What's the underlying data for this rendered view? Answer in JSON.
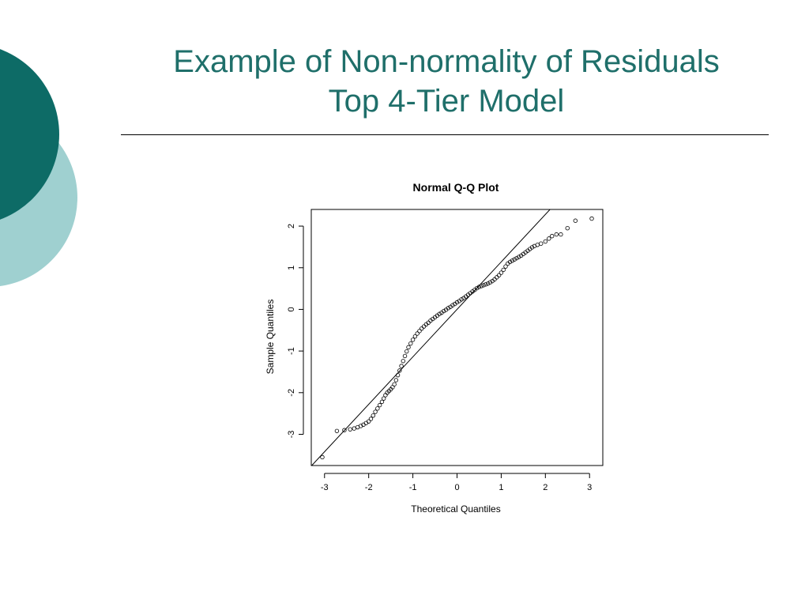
{
  "slide": {
    "title_line1": "Example of Non-normality of Residuals",
    "title_line2": "Top 4-Tier Model",
    "colors": {
      "title": "#1f6f6a",
      "circle_dark": "#0d6b66",
      "circle_light": "#9fd0d0"
    }
  },
  "chart_data": {
    "type": "scatter",
    "title": "Normal Q-Q Plot",
    "xlabel": "Theoretical Quantiles",
    "ylabel": "Sample Quantiles",
    "xlim": [
      -3.3,
      3.3
    ],
    "ylim": [
      -3.75,
      2.4
    ],
    "xticks": [
      -3,
      -2,
      -1,
      0,
      1,
      2,
      3
    ],
    "yticks": [
      -3,
      -2,
      -1,
      0,
      1,
      2
    ],
    "grid": false,
    "reference_line": {
      "intercept": 0.0,
      "slope": 1.14
    },
    "points": [
      [
        -3.05,
        -3.55
      ],
      [
        -2.72,
        -2.92
      ],
      [
        -2.55,
        -2.9
      ],
      [
        -2.42,
        -2.88
      ],
      [
        -2.33,
        -2.86
      ],
      [
        -2.25,
        -2.83
      ],
      [
        -2.18,
        -2.8
      ],
      [
        -2.12,
        -2.77
      ],
      [
        -2.06,
        -2.73
      ],
      [
        -2.0,
        -2.69
      ],
      [
        -1.95,
        -2.63
      ],
      [
        -1.9,
        -2.55
      ],
      [
        -1.85,
        -2.46
      ],
      [
        -1.8,
        -2.38
      ],
      [
        -1.75,
        -2.3
      ],
      [
        -1.7,
        -2.22
      ],
      [
        -1.66,
        -2.14
      ],
      [
        -1.62,
        -2.06
      ],
      [
        -1.58,
        -2.0
      ],
      [
        -1.54,
        -1.96
      ],
      [
        -1.5,
        -1.92
      ],
      [
        -1.46,
        -1.87
      ],
      [
        -1.42,
        -1.8
      ],
      [
        -1.38,
        -1.7
      ],
      [
        -1.34,
        -1.58
      ],
      [
        -1.3,
        -1.47
      ],
      [
        -1.26,
        -1.36
      ],
      [
        -1.22,
        -1.24
      ],
      [
        -1.18,
        -1.12
      ],
      [
        -1.14,
        -1.01
      ],
      [
        -1.1,
        -0.91
      ],
      [
        -1.05,
        -0.82
      ],
      [
        -1.0,
        -0.73
      ],
      [
        -0.95,
        -0.65
      ],
      [
        -0.9,
        -0.58
      ],
      [
        -0.85,
        -0.52
      ],
      [
        -0.8,
        -0.46
      ],
      [
        -0.75,
        -0.41
      ],
      [
        -0.7,
        -0.36
      ],
      [
        -0.65,
        -0.32
      ],
      [
        -0.6,
        -0.27
      ],
      [
        -0.55,
        -0.23
      ],
      [
        -0.5,
        -0.19
      ],
      [
        -0.45,
        -0.15
      ],
      [
        -0.4,
        -0.11
      ],
      [
        -0.35,
        -0.08
      ],
      [
        -0.3,
        -0.04
      ],
      [
        -0.25,
        -0.01
      ],
      [
        -0.2,
        0.03
      ],
      [
        -0.15,
        0.06
      ],
      [
        -0.1,
        0.1
      ],
      [
        -0.05,
        0.13
      ],
      [
        0.0,
        0.17
      ],
      [
        0.05,
        0.2
      ],
      [
        0.1,
        0.24
      ],
      [
        0.15,
        0.27
      ],
      [
        0.2,
        0.31
      ],
      [
        0.25,
        0.35
      ],
      [
        0.3,
        0.39
      ],
      [
        0.35,
        0.43
      ],
      [
        0.4,
        0.47
      ],
      [
        0.45,
        0.51
      ],
      [
        0.5,
        0.54
      ],
      [
        0.55,
        0.56
      ],
      [
        0.6,
        0.58
      ],
      [
        0.65,
        0.6
      ],
      [
        0.7,
        0.62
      ],
      [
        0.75,
        0.65
      ],
      [
        0.8,
        0.68
      ],
      [
        0.85,
        0.72
      ],
      [
        0.9,
        0.77
      ],
      [
        0.95,
        0.82
      ],
      [
        1.0,
        0.88
      ],
      [
        1.05,
        0.95
      ],
      [
        1.1,
        1.03
      ],
      [
        1.15,
        1.1
      ],
      [
        1.2,
        1.14
      ],
      [
        1.25,
        1.17
      ],
      [
        1.3,
        1.2
      ],
      [
        1.35,
        1.23
      ],
      [
        1.4,
        1.26
      ],
      [
        1.45,
        1.29
      ],
      [
        1.5,
        1.33
      ],
      [
        1.55,
        1.37
      ],
      [
        1.6,
        1.41
      ],
      [
        1.65,
        1.45
      ],
      [
        1.7,
        1.49
      ],
      [
        1.75,
        1.52
      ],
      [
        1.82,
        1.55
      ],
      [
        1.9,
        1.58
      ],
      [
        2.0,
        1.63
      ],
      [
        2.08,
        1.7
      ],
      [
        2.15,
        1.76
      ],
      [
        2.25,
        1.8
      ],
      [
        2.35,
        1.8
      ],
      [
        2.5,
        1.95
      ],
      [
        2.68,
        2.13
      ],
      [
        3.05,
        2.18
      ]
    ]
  }
}
